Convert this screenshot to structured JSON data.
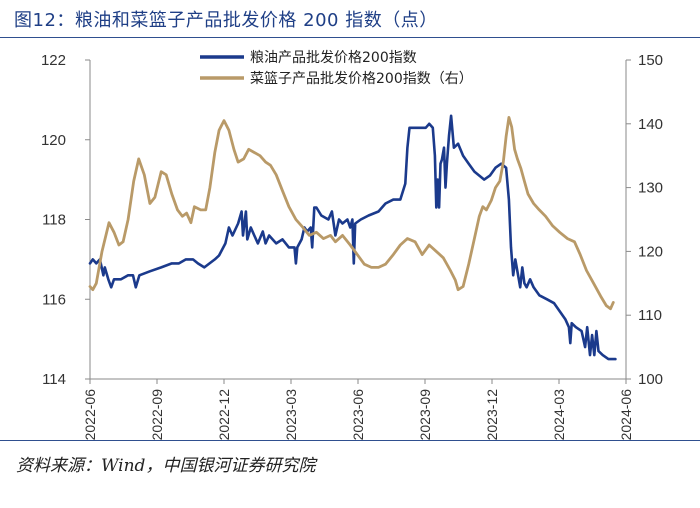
{
  "title": "图12：粮油和菜篮子产品批发价格 200 指数（点）",
  "source": "资料来源：Wind，中国银河证券研究院",
  "colors": {
    "series1": "#1b3a8c",
    "series2": "#b99a68",
    "title": "#1f3f86",
    "rule": "#2f4f8f"
  },
  "chart_data": {
    "type": "line",
    "title": "",
    "xlabel": "",
    "ylabel": "",
    "legend_position": "top-center",
    "grid": false,
    "x_range": [
      "2022-06-01",
      "2024-06-30"
    ],
    "x_ticks": [
      "2022-06",
      "2022-09",
      "2022-12",
      "2023-03",
      "2023-06",
      "2023-09",
      "2023-12",
      "2024-03",
      "2024-06"
    ],
    "y_left": {
      "range": [
        114,
        122
      ],
      "ticks": [
        "114",
        "116",
        "118",
        "120",
        "122"
      ]
    },
    "y_right": {
      "range": [
        100,
        150
      ],
      "ticks": [
        "100",
        "110",
        "120",
        "130",
        "140",
        "150"
      ]
    },
    "series": [
      {
        "name": "粮油产品批发价格200指数",
        "axis": "left",
        "points": [
          [
            "2022-06-01",
            116.9
          ],
          [
            "2022-06-05",
            117.0
          ],
          [
            "2022-06-10",
            116.9
          ],
          [
            "2022-06-15",
            117.0
          ],
          [
            "2022-06-20",
            116.6
          ],
          [
            "2022-06-22",
            116.8
          ],
          [
            "2022-06-27",
            116.5
          ],
          [
            "2022-07-01",
            116.3
          ],
          [
            "2022-07-05",
            116.5
          ],
          [
            "2022-07-15",
            116.5
          ],
          [
            "2022-07-25",
            116.6
          ],
          [
            "2022-08-01",
            116.6
          ],
          [
            "2022-08-05",
            116.3
          ],
          [
            "2022-08-10",
            116.6
          ],
          [
            "2022-08-25",
            116.7
          ],
          [
            "2022-09-10",
            116.8
          ],
          [
            "2022-09-25",
            116.9
          ],
          [
            "2022-10-05",
            116.9
          ],
          [
            "2022-10-15",
            117.0
          ],
          [
            "2022-10-25",
            117.0
          ],
          [
            "2022-11-01",
            116.9
          ],
          [
            "2022-11-10",
            116.8
          ],
          [
            "2022-11-25",
            117.0
          ],
          [
            "2022-12-01",
            117.1
          ],
          [
            "2022-12-10",
            117.4
          ],
          [
            "2022-12-15",
            117.8
          ],
          [
            "2022-12-20",
            117.6
          ],
          [
            "2022-12-28",
            117.9
          ],
          [
            "2023-01-02",
            118.2
          ],
          [
            "2023-01-04",
            117.6
          ],
          [
            "2023-01-08",
            118.2
          ],
          [
            "2023-01-10",
            117.5
          ],
          [
            "2023-01-15",
            117.8
          ],
          [
            "2023-01-20",
            117.6
          ],
          [
            "2023-01-25",
            117.4
          ],
          [
            "2023-02-01",
            117.7
          ],
          [
            "2023-02-05",
            117.4
          ],
          [
            "2023-02-10",
            117.6
          ],
          [
            "2023-02-20",
            117.4
          ],
          [
            "2023-03-01",
            117.5
          ],
          [
            "2023-03-10",
            117.3
          ],
          [
            "2023-03-18",
            117.3
          ],
          [
            "2023-03-20",
            116.9
          ],
          [
            "2023-03-22",
            117.3
          ],
          [
            "2023-03-28",
            117.5
          ],
          [
            "2023-04-01",
            117.8
          ],
          [
            "2023-04-05",
            117.7
          ],
          [
            "2023-04-10",
            117.8
          ],
          [
            "2023-04-12",
            117.3
          ],
          [
            "2023-04-15",
            118.3
          ],
          [
            "2023-04-18",
            118.3
          ],
          [
            "2023-04-25",
            118.1
          ],
          [
            "2023-05-05",
            118.0
          ],
          [
            "2023-05-10",
            118.2
          ],
          [
            "2023-05-15",
            117.6
          ],
          [
            "2023-05-20",
            118.0
          ],
          [
            "2023-05-25",
            117.9
          ],
          [
            "2023-06-01",
            118.0
          ],
          [
            "2023-06-05",
            117.8
          ],
          [
            "2023-06-08",
            118.0
          ],
          [
            "2023-06-10",
            116.9
          ],
          [
            "2023-06-12",
            117.9
          ],
          [
            "2023-06-20",
            118.0
          ],
          [
            "2023-07-01",
            118.1
          ],
          [
            "2023-07-15",
            118.2
          ],
          [
            "2023-07-25",
            118.4
          ],
          [
            "2023-08-05",
            118.5
          ],
          [
            "2023-08-15",
            118.5
          ],
          [
            "2023-08-22",
            118.9
          ],
          [
            "2023-08-25",
            119.8
          ],
          [
            "2023-08-28",
            120.3
          ],
          [
            "2023-09-05",
            120.3
          ],
          [
            "2023-09-10",
            120.3
          ],
          [
            "2023-09-20",
            120.3
          ],
          [
            "2023-09-25",
            120.4
          ],
          [
            "2023-09-30",
            120.3
          ],
          [
            "2023-10-03",
            119.6
          ],
          [
            "2023-10-05",
            118.3
          ],
          [
            "2023-10-07",
            119.0
          ],
          [
            "2023-10-09",
            118.3
          ],
          [
            "2023-10-11",
            119.4
          ],
          [
            "2023-10-13",
            119.5
          ],
          [
            "2023-10-16",
            119.8
          ],
          [
            "2023-10-18",
            118.8
          ],
          [
            "2023-10-20",
            119.4
          ],
          [
            "2023-10-23",
            120.1
          ],
          [
            "2023-10-26",
            120.6
          ],
          [
            "2023-10-30",
            119.8
          ],
          [
            "2023-11-05",
            119.9
          ],
          [
            "2023-11-12",
            119.6
          ],
          [
            "2023-11-20",
            119.4
          ],
          [
            "2023-11-28",
            119.2
          ],
          [
            "2023-12-05",
            119.1
          ],
          [
            "2023-12-12",
            119.0
          ],
          [
            "2023-12-20",
            119.1
          ],
          [
            "2023-12-28",
            119.3
          ],
          [
            "2024-01-05",
            119.4
          ],
          [
            "2024-01-12",
            119.3
          ],
          [
            "2024-01-16",
            118.5
          ],
          [
            "2024-01-19",
            117.3
          ],
          [
            "2024-01-22",
            116.6
          ],
          [
            "2024-01-25",
            117.0
          ],
          [
            "2024-01-27",
            116.8
          ],
          [
            "2024-01-30",
            116.5
          ],
          [
            "2024-02-01",
            116.3
          ],
          [
            "2024-02-04",
            116.8
          ],
          [
            "2024-02-07",
            116.4
          ],
          [
            "2024-02-10",
            116.3
          ],
          [
            "2024-02-15",
            116.5
          ],
          [
            "2024-02-20",
            116.3
          ],
          [
            "2024-02-28",
            116.1
          ],
          [
            "2024-03-10",
            116.0
          ],
          [
            "2024-03-20",
            115.9
          ],
          [
            "2024-03-28",
            115.7
          ],
          [
            "2024-04-05",
            115.5
          ],
          [
            "2024-04-10",
            115.3
          ],
          [
            "2024-04-12",
            114.9
          ],
          [
            "2024-04-14",
            115.4
          ],
          [
            "2024-04-20",
            115.3
          ],
          [
            "2024-04-28",
            115.2
          ],
          [
            "2024-05-03",
            114.8
          ],
          [
            "2024-05-06",
            115.3
          ],
          [
            "2024-05-10",
            114.6
          ],
          [
            "2024-05-13",
            115.1
          ],
          [
            "2024-05-16",
            114.6
          ],
          [
            "2024-05-19",
            115.2
          ],
          [
            "2024-05-22",
            114.7
          ],
          [
            "2024-05-28",
            114.6
          ],
          [
            "2024-06-05",
            114.5
          ],
          [
            "2024-06-15",
            114.5
          ]
        ]
      },
      {
        "name": "菜篮子产品批发价格200指数（右）",
        "axis": "right",
        "points": [
          [
            "2022-06-01",
            114.5
          ],
          [
            "2022-06-05",
            114.0
          ],
          [
            "2022-06-10",
            115.0
          ],
          [
            "2022-06-18",
            120.0
          ],
          [
            "2022-06-28",
            124.5
          ],
          [
            "2022-07-05",
            123.0
          ],
          [
            "2022-07-12",
            121.0
          ],
          [
            "2022-07-18",
            121.5
          ],
          [
            "2022-07-25",
            125.0
          ],
          [
            "2022-08-02",
            131.0
          ],
          [
            "2022-08-09",
            134.5
          ],
          [
            "2022-08-17",
            132.0
          ],
          [
            "2022-08-25",
            127.5
          ],
          [
            "2022-09-01",
            128.5
          ],
          [
            "2022-09-10",
            132.5
          ],
          [
            "2022-09-17",
            132.0
          ],
          [
            "2022-09-25",
            129.0
          ],
          [
            "2022-10-03",
            126.5
          ],
          [
            "2022-10-10",
            125.5
          ],
          [
            "2022-10-16",
            126.0
          ],
          [
            "2022-10-22",
            124.5
          ],
          [
            "2022-10-27",
            127.0
          ],
          [
            "2022-11-05",
            126.5
          ],
          [
            "2022-11-12",
            126.5
          ],
          [
            "2022-11-18",
            130.0
          ],
          [
            "2022-11-25",
            135.5
          ],
          [
            "2022-12-01",
            139.0
          ],
          [
            "2022-12-08",
            140.5
          ],
          [
            "2022-12-15",
            139.0
          ],
          [
            "2022-12-22",
            136.0
          ],
          [
            "2022-12-28",
            134.0
          ],
          [
            "2023-01-05",
            134.5
          ],
          [
            "2023-01-12",
            136.0
          ],
          [
            "2023-01-20",
            135.5
          ],
          [
            "2023-01-28",
            135.0
          ],
          [
            "2023-02-05",
            134.0
          ],
          [
            "2023-02-12",
            133.5
          ],
          [
            "2023-02-20",
            132.0
          ],
          [
            "2023-03-01",
            129.5
          ],
          [
            "2023-03-10",
            127.0
          ],
          [
            "2023-03-20",
            125.0
          ],
          [
            "2023-03-28",
            124.0
          ],
          [
            "2023-04-08",
            122.5
          ],
          [
            "2023-04-18",
            123.0
          ],
          [
            "2023-04-28",
            122.0
          ],
          [
            "2023-05-08",
            122.5
          ],
          [
            "2023-05-15",
            121.5
          ],
          [
            "2023-05-25",
            122.5
          ],
          [
            "2023-06-05",
            121.0
          ],
          [
            "2023-06-15",
            119.5
          ],
          [
            "2023-06-25",
            118.0
          ],
          [
            "2023-07-05",
            117.5
          ],
          [
            "2023-07-15",
            117.5
          ],
          [
            "2023-07-25",
            118.0
          ],
          [
            "2023-08-05",
            119.5
          ],
          [
            "2023-08-15",
            121.0
          ],
          [
            "2023-08-25",
            122.0
          ],
          [
            "2023-09-05",
            121.5
          ],
          [
            "2023-09-15",
            119.5
          ],
          [
            "2023-09-25",
            121.0
          ],
          [
            "2023-10-05",
            120.0
          ],
          [
            "2023-10-15",
            119.0
          ],
          [
            "2023-10-25",
            117.0
          ],
          [
            "2023-11-01",
            115.5
          ],
          [
            "2023-11-05",
            114.0
          ],
          [
            "2023-11-12",
            114.5
          ],
          [
            "2023-11-20",
            118.0
          ],
          [
            "2023-11-28",
            122.0
          ],
          [
            "2023-12-05",
            125.5
          ],
          [
            "2023-12-10",
            127.0
          ],
          [
            "2023-12-15",
            126.5
          ],
          [
            "2023-12-22",
            128.0
          ],
          [
            "2023-12-28",
            130.0
          ],
          [
            "2024-01-03",
            131.0
          ],
          [
            "2024-01-08",
            134.0
          ],
          [
            "2024-01-12",
            138.0
          ],
          [
            "2024-01-16",
            141.0
          ],
          [
            "2024-01-20",
            139.5
          ],
          [
            "2024-01-24",
            136.0
          ],
          [
            "2024-01-28",
            134.5
          ],
          [
            "2024-02-02",
            133.0
          ],
          [
            "2024-02-07",
            131.0
          ],
          [
            "2024-02-12",
            129.0
          ],
          [
            "2024-02-20",
            127.5
          ],
          [
            "2024-02-28",
            126.5
          ],
          [
            "2024-03-08",
            125.5
          ],
          [
            "2024-03-18",
            124.0
          ],
          [
            "2024-03-28",
            123.0
          ],
          [
            "2024-04-08",
            122.0
          ],
          [
            "2024-04-18",
            121.5
          ],
          [
            "2024-04-26",
            119.5
          ],
          [
            "2024-05-05",
            117.0
          ],
          [
            "2024-05-15",
            115.0
          ],
          [
            "2024-05-25",
            113.0
          ],
          [
            "2024-06-02",
            111.5
          ],
          [
            "2024-06-08",
            111.0
          ],
          [
            "2024-06-12",
            112.0
          ]
        ]
      }
    ]
  }
}
